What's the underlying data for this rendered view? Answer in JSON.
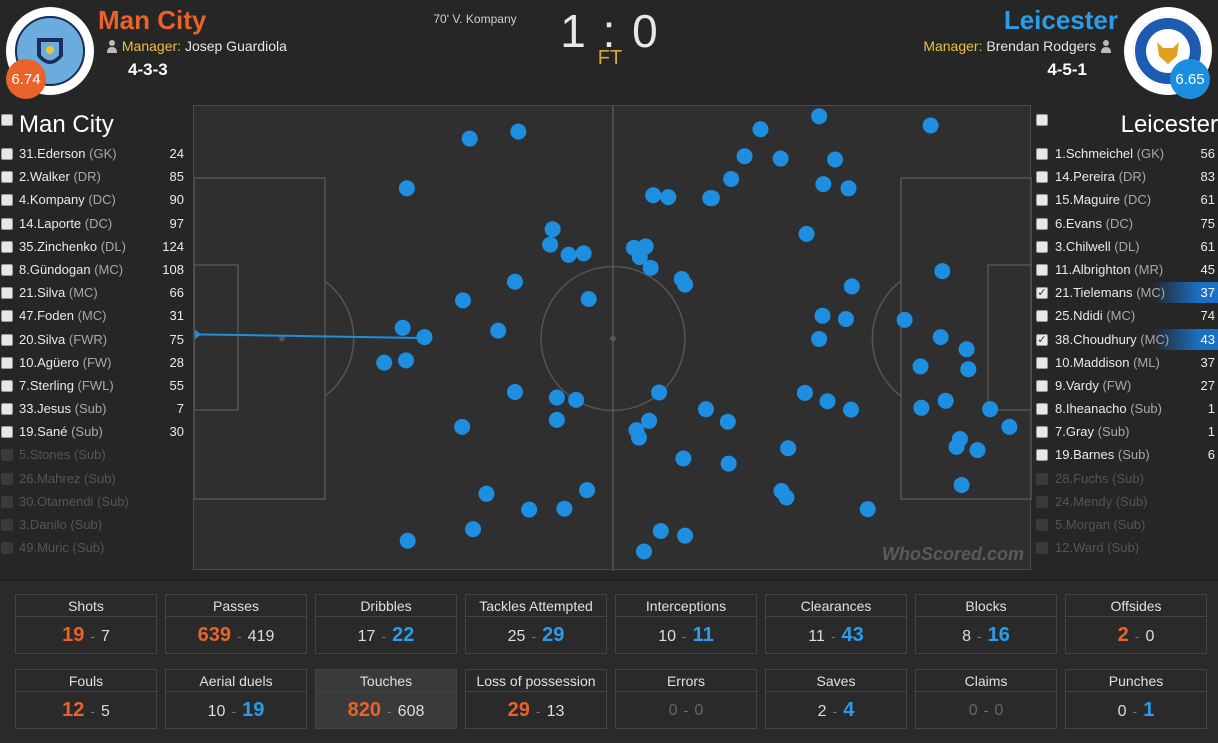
{
  "header": {
    "home": {
      "name": "Man City",
      "manager_label": "Manager:",
      "manager": "Josep Guardiola",
      "formation": "4-3-3",
      "rating": "6.74",
      "crest_text": "MANCHESTER CITY"
    },
    "away": {
      "name": "Leicester",
      "manager_label": "Manager:",
      "manager": "Brendan Rodgers",
      "formation": "4-5-1",
      "rating": "6.65",
      "crest_text": "LEICESTER CITY FOOTBALL CLUB"
    },
    "score": "1 : 0",
    "status": "FT",
    "event": "70' V. Kompany"
  },
  "colors": {
    "home": "#e8622a",
    "away": "#2a9de8",
    "rating_home": "#e8622a",
    "rating_away": "#1c8ee0",
    "manager": "#e8c23f",
    "touch_dot": "#1e8fe0"
  },
  "home_list": {
    "title": "Man City",
    "players": [
      {
        "name": "31.Ederson",
        "pos": "(GK)",
        "value": "24",
        "checked": false,
        "active": true
      },
      {
        "name": "2.Walker",
        "pos": "(DR)",
        "value": "85",
        "checked": false,
        "active": true
      },
      {
        "name": "4.Kompany",
        "pos": "(DC)",
        "value": "90",
        "checked": false,
        "active": true
      },
      {
        "name": "14.Laporte",
        "pos": "(DC)",
        "value": "97",
        "checked": false,
        "active": true
      },
      {
        "name": "35.Zinchenko",
        "pos": "(DL)",
        "value": "124",
        "checked": false,
        "active": true
      },
      {
        "name": "8.Gündogan",
        "pos": "(MC)",
        "value": "108",
        "checked": false,
        "active": true
      },
      {
        "name": "21.Silva",
        "pos": "(MC)",
        "value": "66",
        "checked": false,
        "active": true
      },
      {
        "name": "47.Foden",
        "pos": "(MC)",
        "value": "31",
        "checked": false,
        "active": true
      },
      {
        "name": "20.Silva",
        "pos": "(FWR)",
        "value": "75",
        "checked": false,
        "active": true
      },
      {
        "name": "10.Agüero",
        "pos": "(FW)",
        "value": "28",
        "checked": false,
        "active": true
      },
      {
        "name": "7.Sterling",
        "pos": "(FWL)",
        "value": "55",
        "checked": false,
        "active": true
      },
      {
        "name": "33.Jesus",
        "pos": "(Sub)",
        "value": "7",
        "checked": false,
        "active": true
      },
      {
        "name": "19.Sané",
        "pos": "(Sub)",
        "value": "30",
        "checked": false,
        "active": true
      },
      {
        "name": "5.Stones",
        "pos": "(Sub)",
        "value": "",
        "checked": false,
        "active": false
      },
      {
        "name": "26.Mahrez",
        "pos": "(Sub)",
        "value": "",
        "checked": false,
        "active": false
      },
      {
        "name": "30.Otamendi",
        "pos": "(Sub)",
        "value": "",
        "checked": false,
        "active": false
      },
      {
        "name": "3.Danilo",
        "pos": "(Sub)",
        "value": "",
        "checked": false,
        "active": false
      },
      {
        "name": "49.Muric",
        "pos": "(Sub)",
        "value": "",
        "checked": false,
        "active": false
      }
    ]
  },
  "away_list": {
    "title": "Leicester",
    "players": [
      {
        "name": "1.Schmeichel",
        "pos": "(GK)",
        "value": "56",
        "checked": false,
        "active": true
      },
      {
        "name": "14.Pereira",
        "pos": "(DR)",
        "value": "83",
        "checked": false,
        "active": true
      },
      {
        "name": "15.Maguire",
        "pos": "(DC)",
        "value": "61",
        "checked": false,
        "active": true
      },
      {
        "name": "6.Evans",
        "pos": "(DC)",
        "value": "75",
        "checked": false,
        "active": true
      },
      {
        "name": "3.Chilwell",
        "pos": "(DL)",
        "value": "61",
        "checked": false,
        "active": true
      },
      {
        "name": "11.Albrighton",
        "pos": "(MR)",
        "value": "45",
        "checked": false,
        "active": true
      },
      {
        "name": "21.Tielemans",
        "pos": "(MC)",
        "value": "37",
        "checked": true,
        "active": true
      },
      {
        "name": "25.Ndidi",
        "pos": "(MC)",
        "value": "74",
        "checked": false,
        "active": true
      },
      {
        "name": "38.Choudhury",
        "pos": "(MC)",
        "value": "43",
        "checked": true,
        "active": true
      },
      {
        "name": "10.Maddison",
        "pos": "(ML)",
        "value": "37",
        "checked": false,
        "active": true
      },
      {
        "name": "9.Vardy",
        "pos": "(FW)",
        "value": "27",
        "checked": false,
        "active": true
      },
      {
        "name": "8.Iheanacho",
        "pos": "(Sub)",
        "value": "1",
        "checked": false,
        "active": true
      },
      {
        "name": "7.Gray",
        "pos": "(Sub)",
        "value": "1",
        "checked": false,
        "active": true
      },
      {
        "name": "19.Barnes",
        "pos": "(Sub)",
        "value": "6",
        "checked": false,
        "active": true
      },
      {
        "name": "28.Fuchs",
        "pos": "(Sub)",
        "value": "",
        "checked": false,
        "active": false
      },
      {
        "name": "24.Mendy",
        "pos": "(Sub)",
        "value": "",
        "checked": false,
        "active": false
      },
      {
        "name": "5.Morgan",
        "pos": "(Sub)",
        "value": "",
        "checked": false,
        "active": false
      },
      {
        "name": "12.Ward",
        "pos": "(Sub)",
        "value": "",
        "checked": false,
        "active": false
      }
    ]
  },
  "pitch": {
    "watermark": "WhoScored.com",
    "touches": [
      [
        0.329,
        0.07
      ],
      [
        0.387,
        0.055
      ],
      [
        0.676,
        0.05
      ],
      [
        0.746,
        0.022
      ],
      [
        0.879,
        0.042
      ],
      [
        0.254,
        0.177
      ],
      [
        0.657,
        0.108
      ],
      [
        0.7,
        0.113
      ],
      [
        0.765,
        0.115
      ],
      [
        0.641,
        0.157
      ],
      [
        0.751,
        0.168
      ],
      [
        0.781,
        0.177
      ],
      [
        0.548,
        0.192
      ],
      [
        0.566,
        0.196
      ],
      [
        0.616,
        0.198
      ],
      [
        0.618,
        0.198
      ],
      [
        0.428,
        0.265
      ],
      [
        0.425,
        0.298
      ],
      [
        0.447,
        0.32
      ],
      [
        0.465,
        0.317
      ],
      [
        0.525,
        0.305
      ],
      [
        0.539,
        0.302
      ],
      [
        0.532,
        0.325
      ],
      [
        0.545,
        0.348
      ],
      [
        0.731,
        0.275
      ],
      [
        0.582,
        0.372
      ],
      [
        0.586,
        0.384
      ],
      [
        0.383,
        0.378
      ],
      [
        0.471,
        0.415
      ],
      [
        0.321,
        0.418
      ],
      [
        0.893,
        0.355
      ],
      [
        0.785,
        0.388
      ],
      [
        0.75,
        0.451
      ],
      [
        0.778,
        0.458
      ],
      [
        0.848,
        0.46
      ],
      [
        0.363,
        0.483
      ],
      [
        0.249,
        0.477
      ],
      [
        0.275,
        0.497
      ],
      [
        0.746,
        0.501
      ],
      [
        0.891,
        0.497
      ],
      [
        0.922,
        0.523
      ],
      [
        0.227,
        0.552
      ],
      [
        0.253,
        0.547
      ],
      [
        0.867,
        0.56
      ],
      [
        0.924,
        0.566
      ],
      [
        0.383,
        0.615
      ],
      [
        0.433,
        0.627
      ],
      [
        0.456,
        0.632
      ],
      [
        0.555,
        0.616
      ],
      [
        0.729,
        0.617
      ],
      [
        0.756,
        0.635
      ],
      [
        0.784,
        0.653
      ],
      [
        0.868,
        0.649
      ],
      [
        0.897,
        0.634
      ],
      [
        0.95,
        0.652
      ],
      [
        0.433,
        0.675
      ],
      [
        0.543,
        0.677
      ],
      [
        0.611,
        0.652
      ],
      [
        0.637,
        0.679
      ],
      [
        0.528,
        0.697
      ],
      [
        0.531,
        0.713
      ],
      [
        0.32,
        0.69
      ],
      [
        0.973,
        0.69
      ],
      [
        0.914,
        0.716
      ],
      [
        0.91,
        0.733
      ],
      [
        0.935,
        0.74
      ],
      [
        0.709,
        0.736
      ],
      [
        0.638,
        0.769
      ],
      [
        0.584,
        0.758
      ],
      [
        0.916,
        0.815
      ],
      [
        0.349,
        0.834
      ],
      [
        0.469,
        0.826
      ],
      [
        0.701,
        0.828
      ],
      [
        0.707,
        0.842
      ],
      [
        0.442,
        0.866
      ],
      [
        0.4,
        0.868
      ],
      [
        0.333,
        0.91
      ],
      [
        0.804,
        0.867
      ],
      [
        0.586,
        0.924
      ],
      [
        0.255,
        0.935
      ],
      [
        0.537,
        0.958
      ],
      [
        0.557,
        0.914
      ]
    ],
    "pass_line": {
      "from": [
        0.001,
        0.491
      ],
      "to": [
        0.272,
        0.499
      ]
    }
  },
  "stats": [
    {
      "label": "Shots",
      "home": "19",
      "away": "7",
      "winner": "home"
    },
    {
      "label": "Passes",
      "home": "639",
      "away": "419",
      "winner": "home"
    },
    {
      "label": "Dribbles",
      "home": "17",
      "away": "22",
      "winner": "away"
    },
    {
      "label": "Tackles Attempted",
      "home": "25",
      "away": "29",
      "winner": "away"
    },
    {
      "label": "Interceptions",
      "home": "10",
      "away": "11",
      "winner": "away"
    },
    {
      "label": "Clearances",
      "home": "11",
      "away": "43",
      "winner": "away"
    },
    {
      "label": "Blocks",
      "home": "8",
      "away": "16",
      "winner": "away"
    },
    {
      "label": "Offsides",
      "home": "2",
      "away": "0",
      "winner": "home"
    },
    {
      "label": "Fouls",
      "home": "12",
      "away": "5",
      "winner": "home"
    },
    {
      "label": "Aerial duels",
      "home": "10",
      "away": "19",
      "winner": "away"
    },
    {
      "label": "Touches",
      "home": "820",
      "away": "608",
      "winner": "home",
      "selected": true
    },
    {
      "label": "Loss of possession",
      "home": "29",
      "away": "13",
      "winner": "home"
    },
    {
      "label": "Errors",
      "home": "0",
      "away": "0",
      "winner": "none"
    },
    {
      "label": "Saves",
      "home": "2",
      "away": "4",
      "winner": "away"
    },
    {
      "label": "Claims",
      "home": "0",
      "away": "0",
      "winner": "none"
    },
    {
      "label": "Punches",
      "home": "0",
      "away": "1",
      "winner": "away"
    }
  ]
}
